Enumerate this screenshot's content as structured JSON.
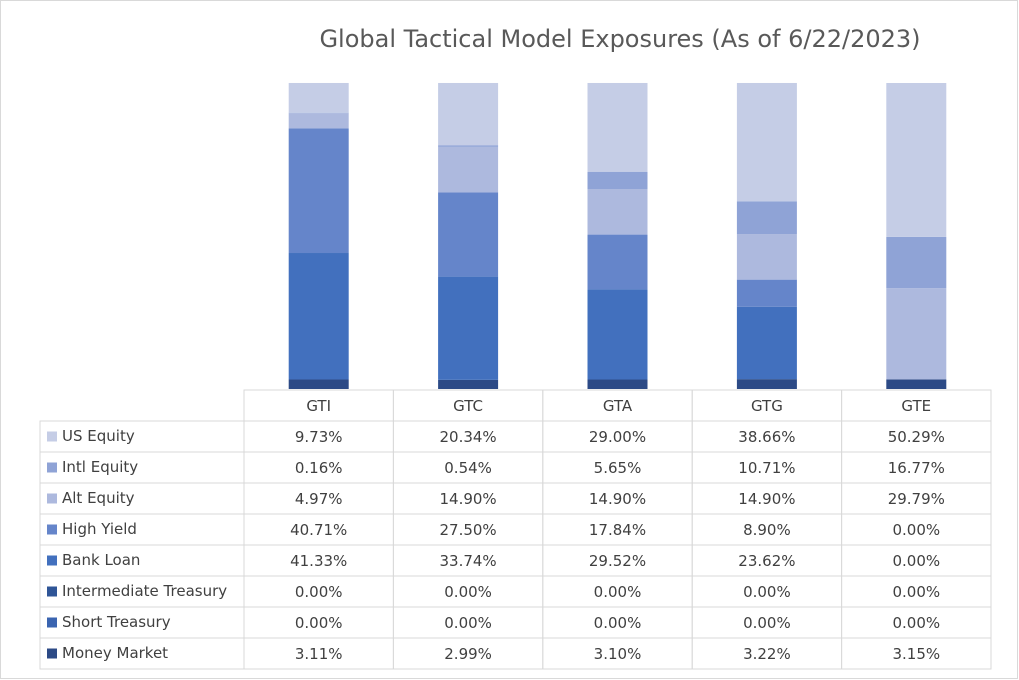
{
  "chart_data": {
    "type": "bar",
    "stacked": true,
    "title": "Global Tactical Model Exposures (As of 6/22/2023)",
    "categories": [
      "GTI",
      "GTC",
      "GTA",
      "GTG",
      "GTE"
    ],
    "ylim": [
      0,
      100
    ],
    "series": [
      {
        "name": "US Equity",
        "color": "#c5cde6",
        "values": [
          9.73,
          20.34,
          29.0,
          38.66,
          50.29
        ],
        "value_labels": [
          "9.73%",
          "20.34%",
          "29.00%",
          "38.66%",
          "50.29%"
        ]
      },
      {
        "name": "Intl Equity",
        "color": "#8fa3d6",
        "values": [
          0.16,
          0.54,
          5.65,
          10.71,
          16.77
        ],
        "value_labels": [
          "0.16%",
          "0.54%",
          "5.65%",
          "10.71%",
          "16.77%"
        ]
      },
      {
        "name": "Alt Equity",
        "color": "#adb9de",
        "values": [
          4.97,
          14.9,
          14.9,
          14.9,
          29.79
        ],
        "value_labels": [
          "4.97%",
          "14.90%",
          "14.90%",
          "14.90%",
          "29.79%"
        ]
      },
      {
        "name": "High Yield",
        "color": "#6585ca",
        "values": [
          40.71,
          27.5,
          17.84,
          8.9,
          0.0
        ],
        "value_labels": [
          "40.71%",
          "27.50%",
          "17.84%",
          "8.90%",
          "0.00%"
        ]
      },
      {
        "name": "Bank Loan",
        "color": "#4270be",
        "values": [
          41.33,
          33.74,
          29.52,
          23.62,
          0.0
        ],
        "value_labels": [
          "41.33%",
          "33.74%",
          "29.52%",
          "23.62%",
          "0.00%"
        ]
      },
      {
        "name": "Intermediate Treasury",
        "color": "#2f5597",
        "values": [
          0.0,
          0.0,
          0.0,
          0.0,
          0.0
        ],
        "value_labels": [
          "0.00%",
          "0.00%",
          "0.00%",
          "0.00%",
          "0.00%"
        ]
      },
      {
        "name": "Short Treasury",
        "color": "#3a64b0",
        "values": [
          0.0,
          0.0,
          0.0,
          0.0,
          0.0
        ],
        "value_labels": [
          "0.00%",
          "0.00%",
          "0.00%",
          "0.00%",
          "0.00%"
        ]
      },
      {
        "name": "Money Market",
        "color": "#2c4a86",
        "values": [
          3.11,
          2.99,
          3.1,
          3.22,
          3.15
        ],
        "value_labels": [
          "3.11%",
          "2.99%",
          "3.10%",
          "3.22%",
          "3.15%"
        ]
      }
    ]
  }
}
